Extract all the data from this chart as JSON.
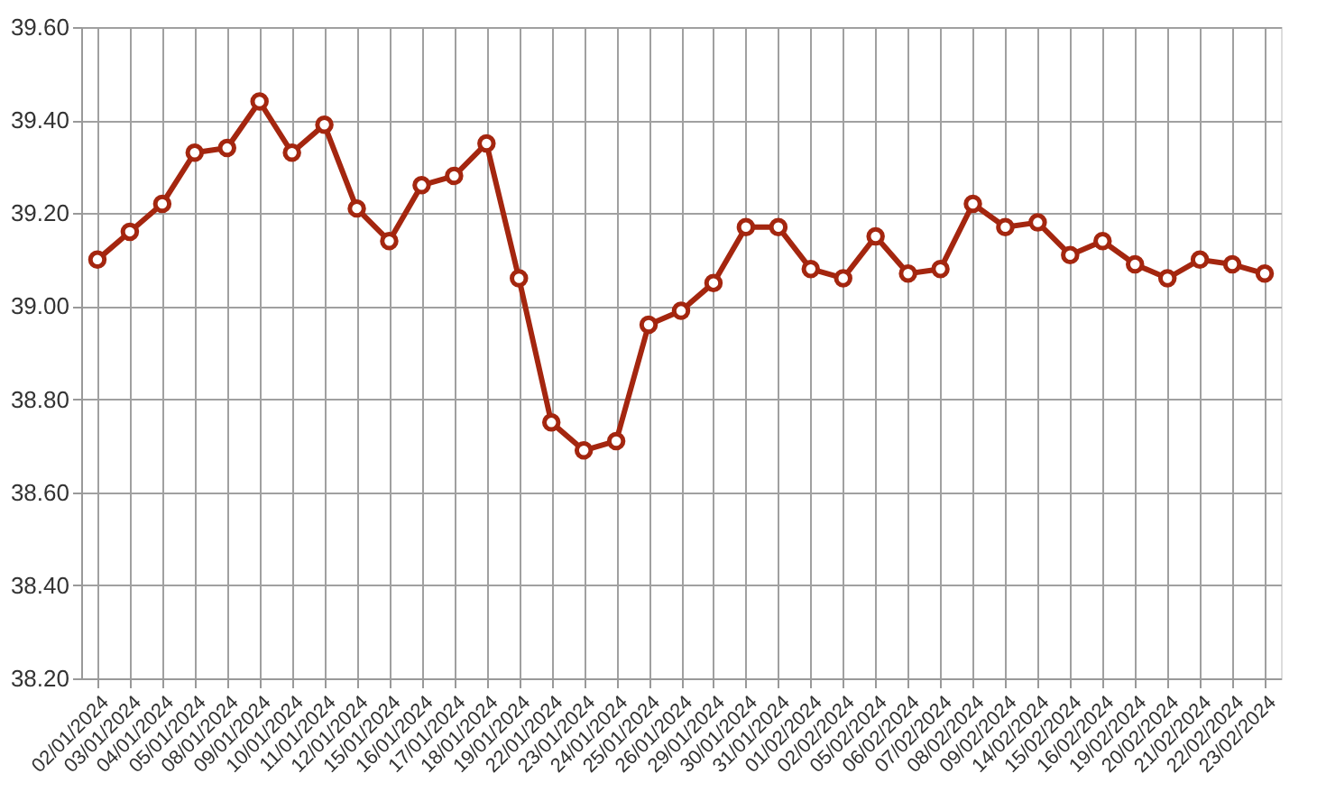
{
  "chart_data": {
    "type": "line",
    "categories": [
      "02/01/2024",
      "03/01/2024",
      "04/01/2024",
      "05/01/2024",
      "08/01/2024",
      "09/01/2024",
      "10/01/2024",
      "11/01/2024",
      "12/01/2024",
      "15/01/2024",
      "16/01/2024",
      "17/01/2024",
      "18/01/2024",
      "19/01/2024",
      "22/01/2024",
      "23/01/2024",
      "24/01/2024",
      "25/01/2024",
      "26/01/2024",
      "29/01/2024",
      "30/01/2024",
      "31/01/2024",
      "01/02/2024",
      "02/02/2024",
      "05/02/2024",
      "06/02/2024",
      "07/02/2024",
      "08/02/2024",
      "09/02/2024",
      "14/02/2024",
      "15/02/2024",
      "16/02/2024",
      "19/02/2024",
      "20/02/2024",
      "21/02/2024",
      "22/02/2024",
      "23/02/2024"
    ],
    "series": [
      {
        "color": "#a4260f",
        "values": [
          39.1,
          39.16,
          39.22,
          39.33,
          39.34,
          39.44,
          39.33,
          39.39,
          39.21,
          39.14,
          39.26,
          39.28,
          39.35,
          39.06,
          38.75,
          38.69,
          38.71,
          38.96,
          38.99,
          39.05,
          39.17,
          39.17,
          39.08,
          39.06,
          39.15,
          39.07,
          39.08,
          39.22,
          39.17,
          39.18,
          39.11,
          39.14,
          39.09,
          39.06,
          39.1,
          39.09,
          39.07
        ]
      }
    ],
    "ylim": [
      38.2,
      39.6
    ],
    "yticks": [
      {
        "value": 38.2,
        "label": "38.20"
      },
      {
        "value": 38.4,
        "label": "38.40"
      },
      {
        "value": 38.6,
        "label": "38.60"
      },
      {
        "value": 38.8,
        "label": "38.80"
      },
      {
        "value": 39.0,
        "label": "39.00"
      },
      {
        "value": 39.2,
        "label": "39.20"
      },
      {
        "value": 39.4,
        "label": "39.40"
      },
      {
        "value": 39.6,
        "label": "39.60"
      }
    ],
    "grid": true,
    "marker": "circle",
    "line_style": "solid"
  }
}
